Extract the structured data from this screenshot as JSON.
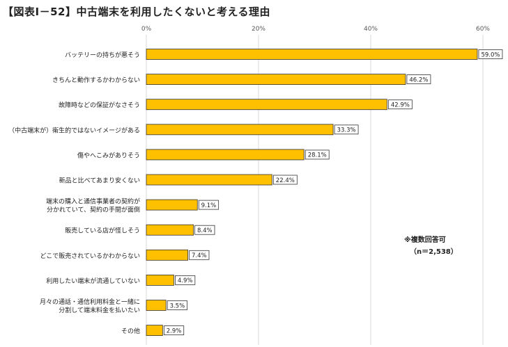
{
  "chart_data": {
    "type": "bar",
    "orientation": "horizontal",
    "title": "【図表Ⅰ－52】中古端末を利用したくないと考える理由",
    "categories": [
      [
        "バッテリーの持ちが悪そう"
      ],
      [
        "きちんと動作するかわからない"
      ],
      [
        "故障時などの保証がなさそう"
      ],
      [
        "（中古端末が）衛生的ではないイメージがある"
      ],
      [
        "傷やへこみがありそう"
      ],
      [
        "新品と比べてあまり安くない"
      ],
      [
        "端末の購入と通信事業者の契約が",
        "分かれていて、契約の手間が面倒"
      ],
      [
        "販売している店が怪しそう"
      ],
      [
        "どこで販売されているかわからない"
      ],
      [
        "利用したい端末が流通していない"
      ],
      [
        "月々の通話・通信利用料金と一緒に",
        "分割して端末料金を払いたい"
      ],
      [
        "その他"
      ]
    ],
    "values": [
      59.0,
      46.2,
      42.9,
      33.3,
      28.1,
      22.4,
      9.1,
      8.4,
      7.4,
      4.9,
      3.5,
      2.9
    ],
    "value_labels": [
      "59.0%",
      "46.2%",
      "42.9%",
      "33.3%",
      "28.1%",
      "22.4%",
      "9.1%",
      "8.4%",
      "7.4%",
      "4.9%",
      "3.5%",
      "2.9%"
    ],
    "xlim": [
      0,
      60
    ],
    "x_ticks": [
      "0%",
      "20%",
      "40%",
      "60%"
    ],
    "x_tick_values": [
      0,
      20,
      40,
      60
    ],
    "grid": true,
    "bar_color": "#FFC000",
    "bar_edge_color": "#333333",
    "annotation": [
      "※複数回答可",
      "（n＝2,538）"
    ]
  }
}
